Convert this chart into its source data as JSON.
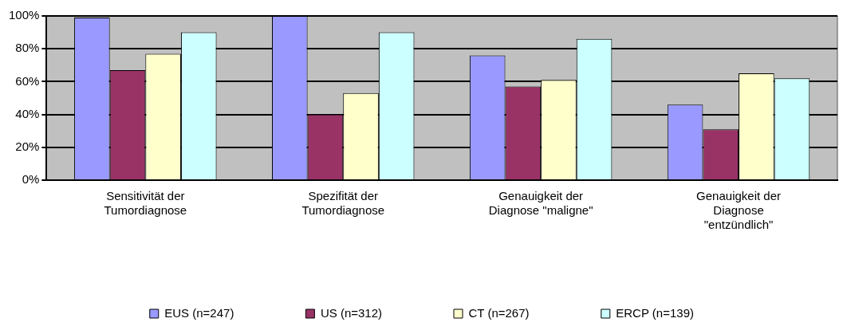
{
  "chart_data": {
    "type": "bar",
    "categories": [
      "Sensitivität der Tumordiagnose",
      "Spezifität der Tumordiagnose",
      "Genauigkeit der Diagnose \"maligne\"",
      "Genauigkeit der Diagnose \"entzündlich\""
    ],
    "series": [
      {
        "name": "EUS (n=247)",
        "color": "#9999ff",
        "values": [
          99,
          100,
          76,
          46
        ]
      },
      {
        "name": "US (n=312)",
        "color": "#993366",
        "values": [
          67,
          40,
          57,
          31
        ]
      },
      {
        "name": "CT (n=267)",
        "color": "#ffffcc",
        "values": [
          77,
          53,
          61,
          65
        ]
      },
      {
        "name": "ERCP (n=139)",
        "color": "#ccffff",
        "values": [
          90,
          90,
          86,
          62
        ]
      }
    ],
    "ylim": [
      0,
      100
    ],
    "yticks": [
      {
        "value": 0,
        "label": "0%"
      },
      {
        "value": 20,
        "label": "20%"
      },
      {
        "value": 40,
        "label": "40%"
      },
      {
        "value": 60,
        "label": "60%"
      },
      {
        "value": 80,
        "label": "80%"
      },
      {
        "value": 100,
        "label": "100%"
      }
    ],
    "grid": "y",
    "legend": "bottom"
  }
}
